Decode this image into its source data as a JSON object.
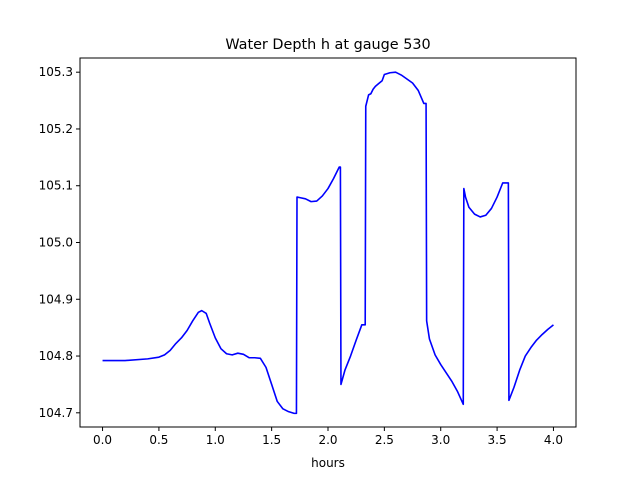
{
  "chart_data": {
    "type": "line",
    "title": "Water Depth h at gauge 530",
    "xlabel": "hours",
    "ylabel": "",
    "xlim": [
      -0.2,
      4.2
    ],
    "ylim": [
      104.675,
      105.325
    ],
    "xticks": [
      0.0,
      0.5,
      1.0,
      1.5,
      2.0,
      2.5,
      3.0,
      3.5,
      4.0
    ],
    "xtick_labels": [
      "0.0",
      "0.5",
      "1.0",
      "1.5",
      "2.0",
      "2.5",
      "3.0",
      "3.5",
      "4.0"
    ],
    "yticks": [
      104.7,
      104.8,
      104.9,
      105.0,
      105.1,
      105.2,
      105.3
    ],
    "ytick_labels": [
      "104.7",
      "104.8",
      "104.9",
      "105.0",
      "105.1",
      "105.2",
      "105.3"
    ],
    "grid": false,
    "series": [
      {
        "color": "#0000ff",
        "x": [
          0.0,
          0.2,
          0.4,
          0.5,
          0.55,
          0.6,
          0.65,
          0.7,
          0.75,
          0.8,
          0.85,
          0.88,
          0.92,
          0.95,
          1.0,
          1.05,
          1.1,
          1.15,
          1.2,
          1.25,
          1.3,
          1.35,
          1.4,
          1.45,
          1.5,
          1.55,
          1.6,
          1.65,
          1.7,
          1.72,
          1.725,
          1.75,
          1.8,
          1.85,
          1.9,
          1.95,
          2.0,
          2.05,
          2.1,
          2.11,
          2.115,
          2.15,
          2.2,
          2.25,
          2.3,
          2.33,
          2.335,
          2.36,
          2.38,
          2.4,
          2.42,
          2.45,
          2.48,
          2.5,
          2.55,
          2.6,
          2.65,
          2.7,
          2.75,
          2.8,
          2.85,
          2.87,
          2.875,
          2.9,
          2.95,
          3.0,
          3.05,
          3.1,
          3.15,
          3.2,
          3.205,
          3.22,
          3.25,
          3.3,
          3.35,
          3.4,
          3.45,
          3.5,
          3.55,
          3.6,
          3.605,
          3.65,
          3.7,
          3.75,
          3.8,
          3.85,
          3.9,
          3.95,
          4.0
        ],
        "y": [
          104.792,
          104.792,
          104.795,
          104.798,
          104.802,
          104.81,
          104.822,
          104.832,
          104.845,
          104.862,
          104.877,
          104.88,
          104.875,
          104.858,
          104.832,
          104.813,
          104.804,
          104.802,
          104.805,
          104.803,
          104.797,
          104.797,
          104.796,
          104.78,
          104.75,
          104.72,
          104.707,
          104.702,
          104.699,
          104.699,
          105.08,
          105.079,
          105.077,
          105.072,
          105.073,
          105.082,
          105.095,
          105.113,
          105.133,
          105.133,
          104.75,
          104.775,
          104.8,
          104.828,
          104.855,
          104.855,
          105.24,
          105.26,
          105.262,
          105.27,
          105.275,
          105.28,
          105.285,
          105.296,
          105.299,
          105.3,
          105.295,
          105.288,
          105.281,
          105.268,
          105.245,
          105.245,
          104.862,
          104.83,
          104.802,
          104.785,
          104.77,
          104.755,
          104.737,
          104.715,
          105.095,
          105.08,
          105.062,
          105.05,
          105.045,
          105.048,
          105.06,
          105.08,
          105.105,
          105.105,
          104.722,
          104.745,
          104.775,
          104.8,
          104.815,
          104.828,
          104.838,
          104.847,
          104.855
        ]
      }
    ]
  }
}
